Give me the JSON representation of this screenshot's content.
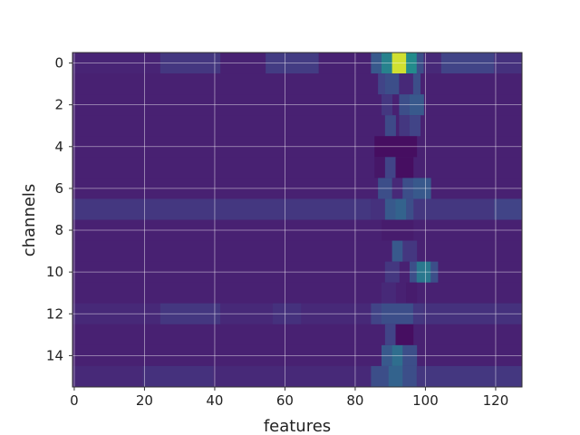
{
  "chart_data": {
    "type": "heatmap",
    "title": "",
    "xlabel": "features",
    "ylabel": "channels",
    "xlim": [
      -0.5,
      127.5
    ],
    "ylim": [
      15.5,
      -0.5
    ],
    "x_ticks": [
      0,
      20,
      40,
      60,
      80,
      100,
      120
    ],
    "y_ticks": [
      0,
      2,
      4,
      6,
      8,
      10,
      12,
      14
    ],
    "grid": true,
    "colormap": "viridis",
    "n_rows": 16,
    "n_cols": 128,
    "base_value": 0.12,
    "rows": [
      {
        "segments": [
          [
            0,
            25,
            0.13
          ],
          [
            25,
            42,
            0.2
          ],
          [
            55,
            70,
            0.22
          ],
          [
            85,
            88,
            0.35
          ],
          [
            88,
            91,
            0.55
          ],
          [
            91,
            95,
            0.95
          ],
          [
            95,
            98,
            0.6
          ],
          [
            98,
            100,
            0.3
          ],
          [
            100,
            105,
            0.15
          ],
          [
            105,
            120,
            0.25
          ],
          [
            120,
            128,
            0.18
          ]
        ]
      },
      {
        "segments": [
          [
            0,
            128,
            0.12
          ],
          [
            87,
            89,
            0.25
          ],
          [
            89,
            93,
            0.3
          ],
          [
            93,
            97,
            0.15
          ],
          [
            97,
            99,
            0.3
          ]
        ]
      },
      {
        "segments": [
          [
            0,
            128,
            0.12
          ],
          [
            88,
            91,
            0.2
          ],
          [
            93,
            96,
            0.3
          ],
          [
            96,
            100,
            0.35
          ]
        ]
      },
      {
        "segments": [
          [
            0,
            128,
            0.12
          ],
          [
            89,
            92,
            0.28
          ],
          [
            93,
            96,
            0.2
          ],
          [
            96,
            99,
            0.25
          ]
        ]
      },
      {
        "segments": [
          [
            0,
            128,
            0.12
          ],
          [
            86,
            98,
            0.05
          ]
        ]
      },
      {
        "segments": [
          [
            0,
            128,
            0.12
          ],
          [
            86,
            89,
            0.08
          ],
          [
            89,
            92,
            0.25
          ],
          [
            92,
            97,
            0.05
          ]
        ]
      },
      {
        "segments": [
          [
            0,
            128,
            0.12
          ],
          [
            87,
            91,
            0.3
          ],
          [
            91,
            94,
            0.15
          ],
          [
            94,
            97,
            0.3
          ],
          [
            97,
            102,
            0.35
          ]
        ]
      },
      {
        "segments": [
          [
            0,
            128,
            0.2
          ],
          [
            85,
            89,
            0.18
          ],
          [
            89,
            92,
            0.35
          ],
          [
            92,
            95,
            0.4
          ],
          [
            95,
            97,
            0.3
          ],
          [
            120,
            128,
            0.25
          ]
        ]
      },
      {
        "segments": [
          [
            0,
            128,
            0.12
          ],
          [
            88,
            97,
            0.1
          ]
        ]
      },
      {
        "segments": [
          [
            0,
            128,
            0.12
          ],
          [
            91,
            94,
            0.35
          ],
          [
            94,
            98,
            0.2
          ]
        ]
      },
      {
        "segments": [
          [
            0,
            128,
            0.12
          ],
          [
            89,
            93,
            0.2
          ],
          [
            96,
            98,
            0.3
          ],
          [
            98,
            102,
            0.5
          ],
          [
            102,
            104,
            0.3
          ]
        ]
      },
      {
        "segments": [
          [
            0,
            128,
            0.12
          ],
          [
            88,
            92,
            0.15
          ],
          [
            95,
            98,
            0.1
          ]
        ]
      },
      {
        "segments": [
          [
            0,
            128,
            0.15
          ],
          [
            25,
            42,
            0.2
          ],
          [
            57,
            65,
            0.18
          ],
          [
            85,
            88,
            0.25
          ],
          [
            88,
            97,
            0.3
          ],
          [
            97,
            100,
            0.2
          ],
          [
            100,
            128,
            0.18
          ]
        ]
      },
      {
        "segments": [
          [
            0,
            128,
            0.12
          ],
          [
            89,
            92,
            0.25
          ],
          [
            92,
            97,
            0.05
          ]
        ]
      },
      {
        "segments": [
          [
            0,
            128,
            0.12
          ],
          [
            88,
            91,
            0.35
          ],
          [
            91,
            94,
            0.45
          ],
          [
            94,
            98,
            0.3
          ]
        ]
      },
      {
        "segments": [
          [
            0,
            128,
            0.15
          ],
          [
            20,
            40,
            0.18
          ],
          [
            85,
            90,
            0.3
          ],
          [
            90,
            94,
            0.4
          ],
          [
            94,
            98,
            0.3
          ],
          [
            98,
            128,
            0.2
          ]
        ]
      }
    ]
  }
}
